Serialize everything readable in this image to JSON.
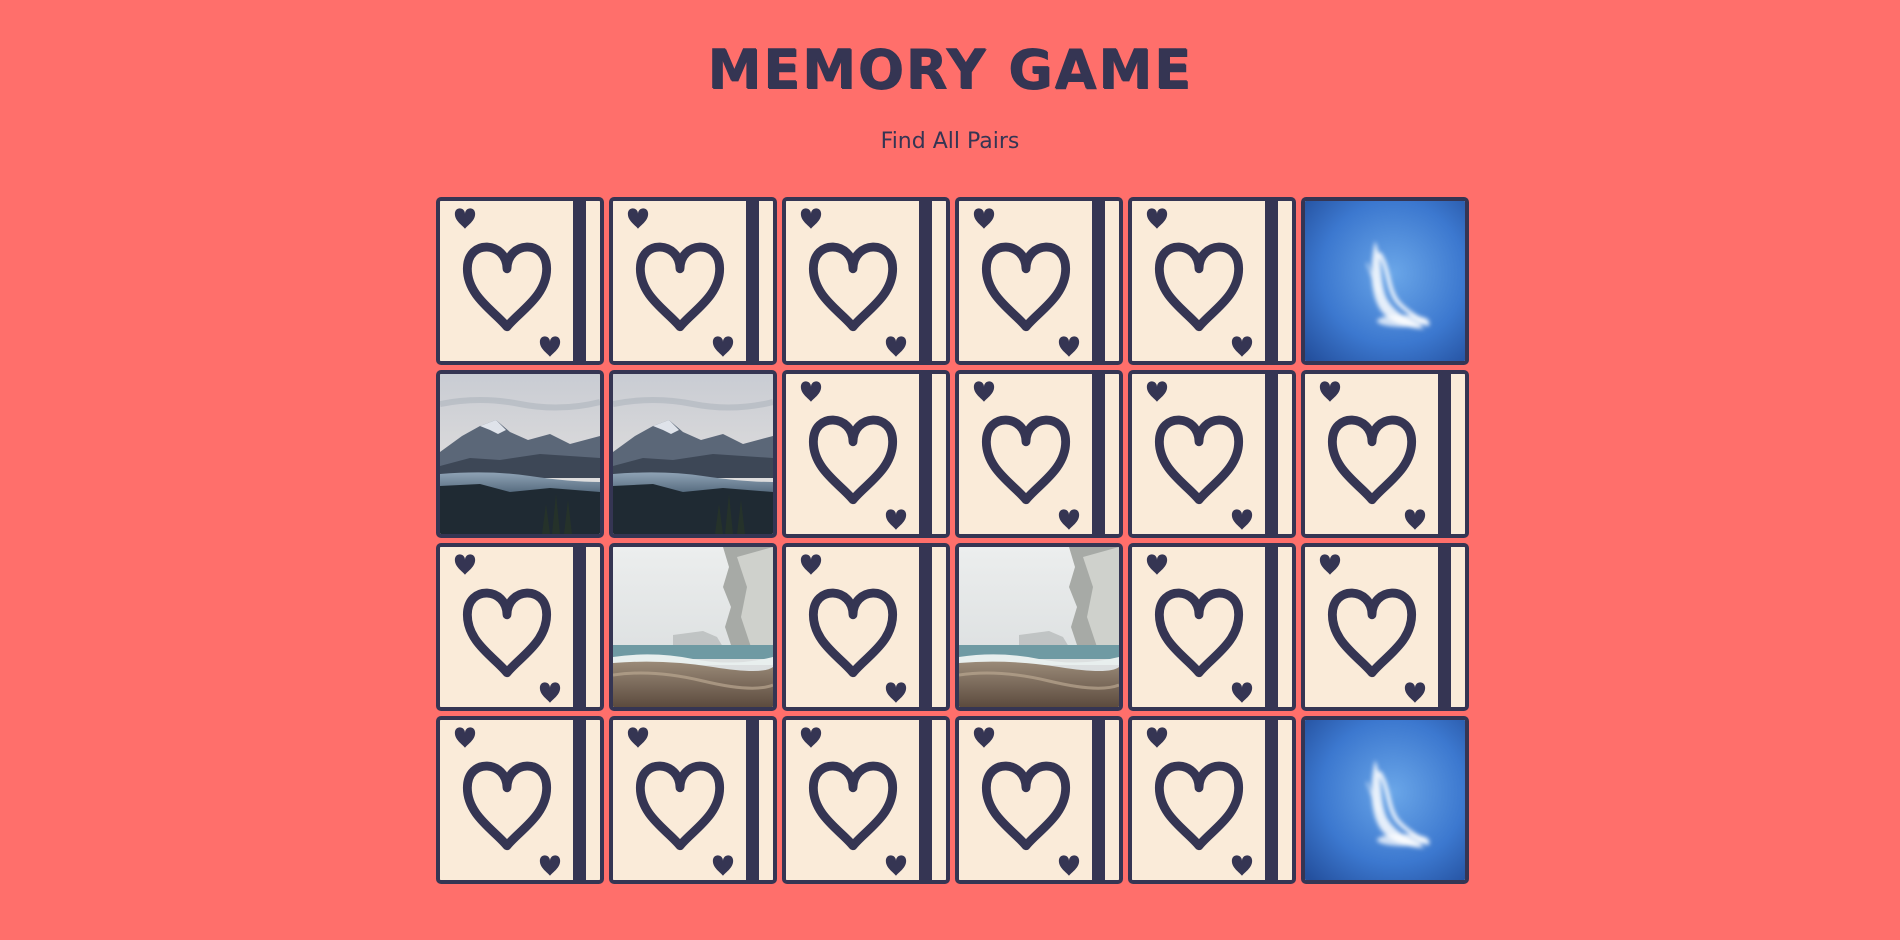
{
  "header": {
    "title": "MEMORY GAME",
    "subtitle": "Find All Pairs"
  },
  "theme": {
    "background": "#ff6f6b",
    "ink": "#353553",
    "card_back": "#faebd9"
  },
  "board": {
    "columns": 6,
    "rows": 4,
    "card_back_icon": "heart-card-back-icon",
    "cards": [
      {
        "state": "hidden"
      },
      {
        "state": "hidden"
      },
      {
        "state": "hidden"
      },
      {
        "state": "hidden"
      },
      {
        "state": "hidden"
      },
      {
        "state": "revealed",
        "image": "sky-cloud"
      },
      {
        "state": "revealed",
        "image": "mountain-lake"
      },
      {
        "state": "revealed",
        "image": "mountain-lake"
      },
      {
        "state": "hidden"
      },
      {
        "state": "hidden"
      },
      {
        "state": "hidden"
      },
      {
        "state": "hidden"
      },
      {
        "state": "hidden"
      },
      {
        "state": "revealed",
        "image": "foggy-beach"
      },
      {
        "state": "hidden"
      },
      {
        "state": "revealed",
        "image": "foggy-beach"
      },
      {
        "state": "hidden"
      },
      {
        "state": "hidden"
      },
      {
        "state": "hidden"
      },
      {
        "state": "hidden"
      },
      {
        "state": "hidden"
      },
      {
        "state": "hidden"
      },
      {
        "state": "hidden"
      },
      {
        "state": "revealed",
        "image": "sky-cloud"
      }
    ]
  }
}
